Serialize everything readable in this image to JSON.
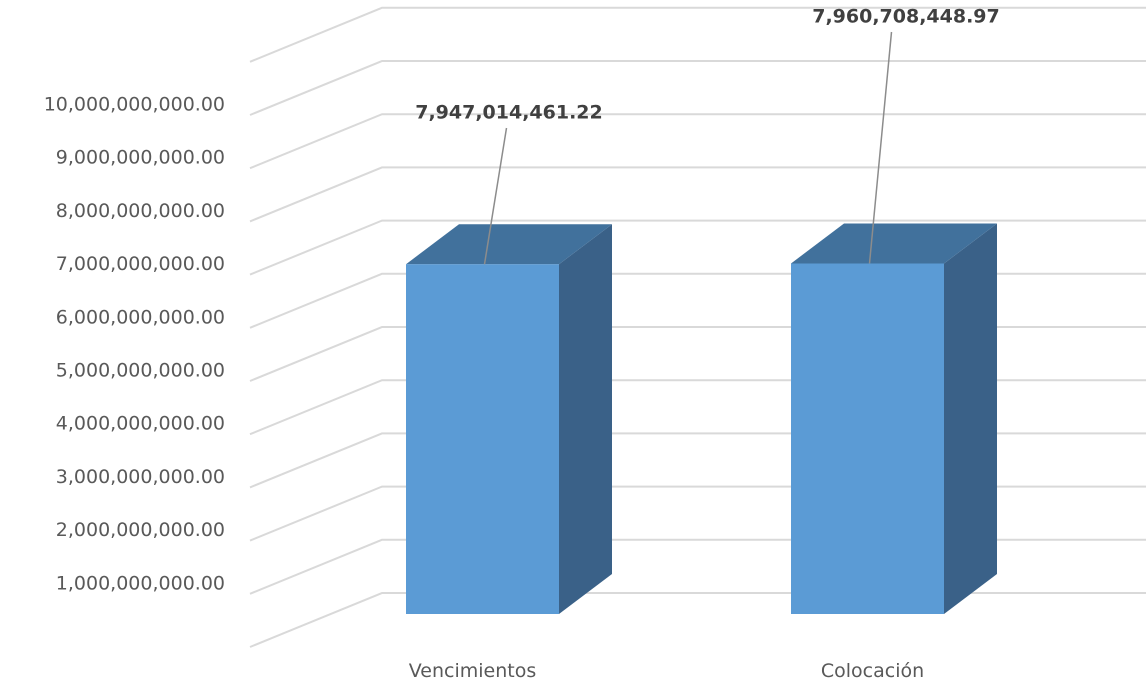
{
  "chart_data": {
    "type": "bar",
    "title": "",
    "xlabel": "",
    "ylabel": "",
    "categories": [
      "Vencimientos",
      "Colocación"
    ],
    "values": [
      7947014461.22,
      7960708448.97
    ],
    "data_labels": [
      "7,947,014,461.22",
      "7,960,708,448.97"
    ],
    "ylim": [
      0,
      11000000000
    ],
    "yticks": [
      1000000000,
      2000000000,
      3000000000,
      4000000000,
      5000000000,
      6000000000,
      7000000000,
      8000000000,
      9000000000,
      10000000000
    ],
    "ytick_labels": [
      "1,000,000,000.00",
      "2,000,000,000.00",
      "3,000,000,000.00",
      "4,000,000,000.00",
      "5,000,000,000.00",
      "6,000,000,000.00",
      "7,000,000,000.00",
      "8,000,000,000.00",
      "9,000,000,000.00",
      "10,000,000,000.00"
    ],
    "grid": true,
    "legend": "none",
    "style": "3d-column",
    "colors": {
      "front": "#5b9bd5",
      "side": "#3a6188",
      "top": "#41719c",
      "grid": "#d9d9d9",
      "text": "#595959",
      "label": "#404040"
    }
  }
}
